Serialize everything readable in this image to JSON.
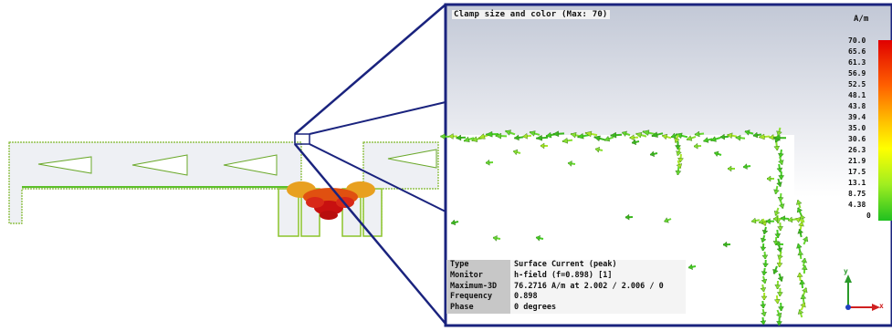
{
  "inset": {
    "title": "Clamp size and color (Max: 70)"
  },
  "legend": {
    "unit": "A/m",
    "ticks": [
      "70.0",
      "65.6",
      "61.3",
      "56.9",
      "52.5",
      "48.1",
      "43.8",
      "39.4",
      "35.0",
      "30.6",
      "26.3",
      "21.9",
      "17.5",
      "13.1",
      "8.75",
      "4.38",
      "0"
    ]
  },
  "info": {
    "rows": [
      {
        "key": "Type",
        "value": "Surface Current (peak)"
      },
      {
        "key": "Monitor",
        "value": "h-field (f=0.898) [1]"
      },
      {
        "key": "Maximum-3D",
        "value": "76.2716 A/m at 2.002 / 2.006 / 0"
      },
      {
        "key": "Frequency",
        "value": "0.898"
      },
      {
        "key": "Phase",
        "value": "0 degrees"
      }
    ]
  },
  "axes": {
    "y_label": "y",
    "x_label": "x"
  },
  "colors": {
    "frame": "#1a237e",
    "arrow_low": "#44cc22",
    "arrow_mid": "#c8e020",
    "arrow_high": "#e03010",
    "inset_bg_top": "#c2c8d6",
    "inset_bg_bottom": "#ffffff"
  }
}
